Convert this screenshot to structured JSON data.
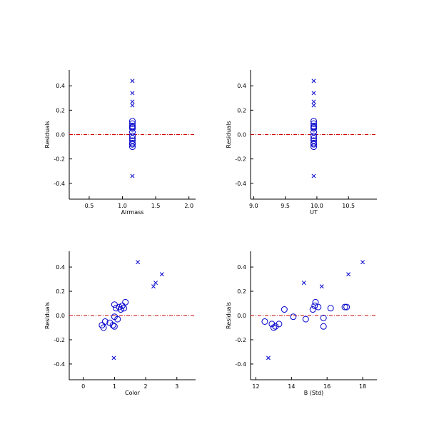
{
  "colors": {
    "frame": "#000000",
    "points": "#0000cc",
    "zero_line": "#cc0000"
  },
  "chart_data": [
    {
      "type": "scatter",
      "xlabel": "Airmass",
      "ylabel": "Residuals",
      "xlim": [
        0.2,
        2.1
      ],
      "ylim": [
        -0.53,
        0.53
      ],
      "xticks": [
        0.5,
        1.0,
        1.5,
        2.0
      ],
      "xtick_labels": [
        "0.5",
        "1.0",
        "1.5",
        "2.0"
      ],
      "yticks": [
        -0.4,
        -0.2,
        0.0,
        0.2,
        0.4
      ],
      "ytick_labels": [
        "-0.4",
        "-0.2",
        "0.0",
        "0.2",
        "0.4"
      ],
      "reference_line": {
        "y": 0.0,
        "style": "dash-dot",
        "color": "red"
      },
      "series": [
        {
          "marker": "circle",
          "points": [
            [
              1.15,
              0.11
            ],
            [
              1.15,
              0.09
            ],
            [
              1.15,
              0.07
            ],
            [
              1.15,
              0.06
            ],
            [
              1.15,
              0.05
            ],
            [
              1.15,
              0.02
            ],
            [
              1.15,
              -0.01
            ],
            [
              1.15,
              -0.03
            ],
            [
              1.15,
              -0.05
            ],
            [
              1.15,
              -0.07
            ],
            [
              1.15,
              -0.08
            ],
            [
              1.15,
              -0.1
            ]
          ]
        },
        {
          "marker": "x",
          "points": [
            [
              1.15,
              0.44
            ],
            [
              1.15,
              0.34
            ],
            [
              1.15,
              0.27
            ],
            [
              1.15,
              0.24
            ],
            [
              1.15,
              -0.34
            ]
          ]
        }
      ]
    },
    {
      "type": "scatter",
      "xlabel": "UT",
      "ylabel": "Residuals",
      "xlim": [
        8.95,
        10.95
      ],
      "ylim": [
        -0.53,
        0.53
      ],
      "xticks": [
        9.0,
        9.5,
        10.0,
        10.5
      ],
      "xtick_labels": [
        "9.0",
        "9.5",
        "10.0",
        "10.5"
      ],
      "yticks": [
        -0.4,
        -0.2,
        0.0,
        0.2,
        0.4
      ],
      "ytick_labels": [
        "-0.4",
        "-0.2",
        "0.0",
        "0.2",
        "0.4"
      ],
      "reference_line": {
        "y": 0.0,
        "style": "dash-dot",
        "color": "red"
      },
      "series": [
        {
          "marker": "circle",
          "points": [
            [
              9.95,
              0.11
            ],
            [
              9.95,
              0.09
            ],
            [
              9.95,
              0.07
            ],
            [
              9.95,
              0.06
            ],
            [
              9.95,
              0.05
            ],
            [
              9.95,
              0.02
            ],
            [
              9.95,
              -0.01
            ],
            [
              9.95,
              -0.03
            ],
            [
              9.95,
              -0.05
            ],
            [
              9.95,
              -0.07
            ],
            [
              9.95,
              -0.08
            ],
            [
              9.95,
              -0.1
            ]
          ]
        },
        {
          "marker": "x",
          "points": [
            [
              9.95,
              0.44
            ],
            [
              9.95,
              0.34
            ],
            [
              9.95,
              0.27
            ],
            [
              9.95,
              0.24
            ],
            [
              9.95,
              -0.34
            ]
          ]
        }
      ]
    },
    {
      "type": "scatter",
      "xlabel": "Color",
      "ylabel": "Residuals",
      "xlim": [
        -0.45,
        3.6
      ],
      "ylim": [
        -0.53,
        0.53
      ],
      "xticks": [
        0,
        1,
        2,
        3
      ],
      "xtick_labels": [
        "0",
        "1",
        "2",
        "3"
      ],
      "yticks": [
        -0.4,
        -0.2,
        0.0,
        0.2,
        0.4
      ],
      "ytick_labels": [
        "-0.4",
        "-0.2",
        "0.0",
        "0.2",
        "0.4"
      ],
      "reference_line": {
        "y": 0.0,
        "style": "dash-dot",
        "color": "red"
      },
      "series": [
        {
          "marker": "circle",
          "points": [
            [
              0.6,
              -0.08
            ],
            [
              0.65,
              -0.1
            ],
            [
              0.7,
              -0.05
            ],
            [
              0.85,
              -0.06
            ],
            [
              0.95,
              -0.08
            ],
            [
              1.0,
              -0.01
            ],
            [
              1.0,
              0.09
            ],
            [
              1.05,
              0.06
            ],
            [
              1.1,
              -0.03
            ],
            [
              1.15,
              0.07
            ],
            [
              1.2,
              0.05
            ],
            [
              1.25,
              0.08
            ],
            [
              1.35,
              0.11
            ],
            [
              1.3,
              0.06
            ],
            [
              1.0,
              -0.09
            ]
          ]
        },
        {
          "marker": "x",
          "points": [
            [
              0.98,
              -0.35
            ],
            [
              1.75,
              0.44
            ],
            [
              2.25,
              0.24
            ],
            [
              2.32,
              0.27
            ],
            [
              2.52,
              0.34
            ]
          ]
        }
      ]
    },
    {
      "type": "scatter",
      "xlabel": "B (Std)",
      "ylabel": "Residuals",
      "xlim": [
        11.7,
        18.8
      ],
      "ylim": [
        -0.53,
        0.53
      ],
      "xticks": [
        12,
        14,
        16,
        18
      ],
      "xtick_labels": [
        "12",
        "14",
        "16",
        "18"
      ],
      "yticks": [
        -0.4,
        -0.2,
        0.0,
        0.2,
        0.4
      ],
      "ytick_labels": [
        "-0.4",
        "-0.2",
        "0.0",
        "0.2",
        "0.4"
      ],
      "reference_line": {
        "y": 0.0,
        "style": "dash-dot",
        "color": "red"
      },
      "series": [
        {
          "marker": "circle",
          "points": [
            [
              12.5,
              -0.05
            ],
            [
              12.9,
              -0.07
            ],
            [
              13.0,
              -0.1
            ],
            [
              13.1,
              -0.09
            ],
            [
              13.3,
              -0.07
            ],
            [
              13.6,
              0.05
            ],
            [
              14.1,
              -0.01
            ],
            [
              14.8,
              -0.03
            ],
            [
              15.2,
              0.05
            ],
            [
              15.3,
              0.08
            ],
            [
              15.35,
              0.11
            ],
            [
              15.5,
              0.07
            ],
            [
              15.8,
              -0.02
            ],
            [
              15.8,
              -0.09
            ],
            [
              16.2,
              0.06
            ],
            [
              17.0,
              0.07
            ],
            [
              17.1,
              0.07
            ]
          ]
        },
        {
          "marker": "x",
          "points": [
            [
              12.7,
              -0.35
            ],
            [
              14.7,
              0.27
            ],
            [
              15.7,
              0.24
            ],
            [
              17.2,
              0.34
            ],
            [
              18.0,
              0.44
            ]
          ]
        }
      ]
    }
  ]
}
